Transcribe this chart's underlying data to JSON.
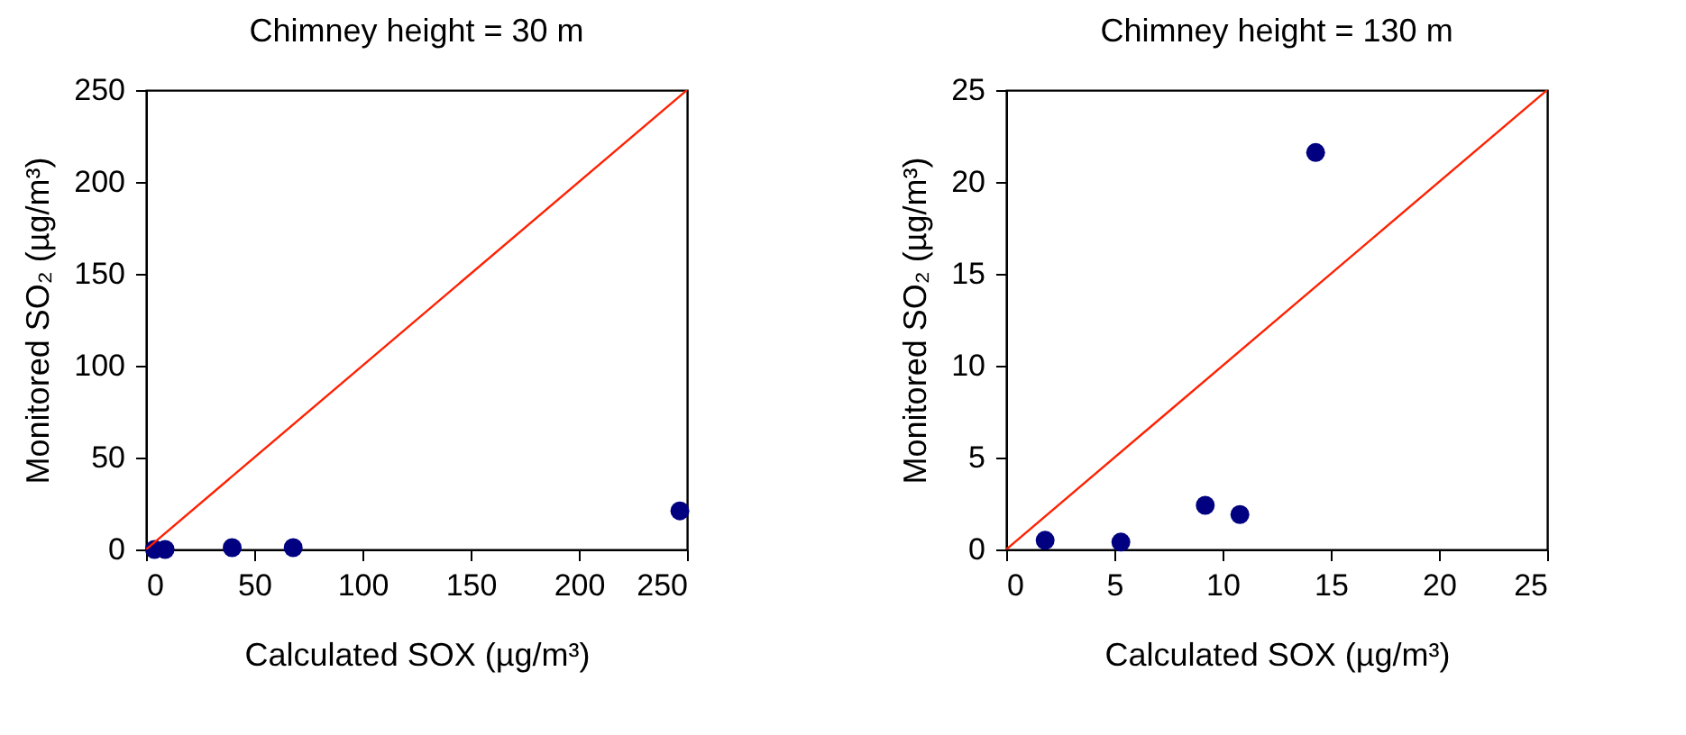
{
  "chart_data": [
    {
      "type": "scatter",
      "title": "Chimney height = 30 m",
      "xlabel": "Calculated SOX (µg/m³)",
      "ylabel": "Monitored SO₂ (µg/m³)",
      "xlim": [
        0,
        250
      ],
      "ylim": [
        0,
        250
      ],
      "xticks": [
        0,
        50,
        100,
        150,
        200,
        250
      ],
      "yticks": [
        0,
        50,
        100,
        150,
        200,
        250
      ],
      "grid": false,
      "series": [
        {
          "color": "#000080",
          "marker": "circle",
          "x": [
            3.9,
            8.8,
            39.8,
            68,
            246.7
          ],
          "values": [
            0,
            0,
            1,
            1,
            21
          ]
        },
        {
          "type": "line",
          "marker": "none",
          "color": "#ff2000",
          "x": [
            0,
            250
          ],
          "values": [
            0,
            250
          ]
        }
      ]
    },
    {
      "type": "scatter",
      "title": "Chimney height = 130 m",
      "xlabel": "Calculated SOX (µg/m³)",
      "ylabel": "Monitored SO₂ (µg/m³)",
      "xlim": [
        0,
        25
      ],
      "ylim": [
        0,
        25
      ],
      "xticks": [
        0,
        5,
        10,
        15,
        20,
        25
      ],
      "yticks": [
        0,
        5,
        10,
        15,
        20,
        25
      ],
      "grid": false,
      "series": [
        {
          "color": "#000080",
          "marker": "circle",
          "x": [
            1.8,
            5.3,
            9.2,
            10.8,
            14.3
          ],
          "values": [
            0.5,
            0.4,
            2.4,
            1.9,
            21.6
          ]
        },
        {
          "type": "line",
          "marker": "none",
          "color": "#ff2000",
          "x": [
            0,
            25
          ],
          "values": [
            0,
            25
          ]
        }
      ]
    }
  ]
}
